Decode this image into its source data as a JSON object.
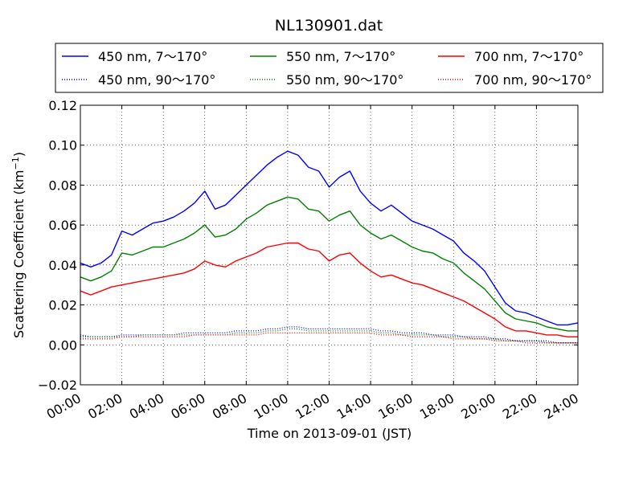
{
  "chart_data": {
    "type": "line",
    "title": "NL130901.dat",
    "xlabel": "Time on 2013-09-01 (JST)",
    "ylabel": "Scattering Coefficient (km",
    "ylabel_sup": "−1",
    "ylabel_end": ")",
    "x_ticks": [
      "00:00",
      "02:00",
      "04:00",
      "06:00",
      "08:00",
      "10:00",
      "12:00",
      "14:00",
      "16:00",
      "18:00",
      "20:00",
      "22:00",
      "24:00"
    ],
    "xlim": [
      "00:00",
      "24:00"
    ],
    "y_ticks": [
      "−0.02",
      "0.00",
      "0.02",
      "0.04",
      "0.06",
      "0.08",
      "0.10",
      "0.12"
    ],
    "ylim": [
      -0.02,
      0.12
    ],
    "grid": true,
    "legend_position": "top",
    "x": [
      "00:00",
      "00:30",
      "01:00",
      "01:30",
      "02:00",
      "02:30",
      "03:00",
      "03:30",
      "04:00",
      "04:30",
      "05:00",
      "05:30",
      "06:00",
      "06:30",
      "07:00",
      "07:30",
      "08:00",
      "08:30",
      "09:00",
      "09:30",
      "10:00",
      "10:30",
      "11:00",
      "11:30",
      "12:00",
      "12:30",
      "13:00",
      "13:30",
      "14:00",
      "14:30",
      "15:00",
      "15:30",
      "16:00",
      "16:30",
      "17:00",
      "17:30",
      "18:00",
      "18:30",
      "19:00",
      "19:30",
      "20:00",
      "20:30",
      "21:00",
      "21:30",
      "22:00",
      "22:30",
      "23:00",
      "23:30",
      "24:00"
    ],
    "series": [
      {
        "name": "450 nm, 7～170°",
        "color": "#0000ff",
        "style": "solid",
        "values": [
          0.041,
          0.039,
          0.041,
          0.045,
          0.057,
          0.055,
          0.058,
          0.061,
          0.062,
          0.064,
          0.067,
          0.071,
          0.077,
          0.068,
          0.07,
          0.075,
          0.08,
          0.085,
          0.09,
          0.094,
          0.097,
          0.095,
          0.089,
          0.087,
          0.079,
          0.084,
          0.087,
          0.077,
          0.071,
          0.067,
          0.07,
          0.066,
          0.062,
          0.06,
          0.058,
          0.055,
          0.052,
          0.046,
          0.042,
          0.037,
          0.029,
          0.021,
          0.017,
          0.016,
          0.014,
          0.012,
          0.01,
          0.01,
          0.011
        ]
      },
      {
        "name": "450 nm, 90～170°",
        "color": "#0000ff",
        "style": "dotted",
        "values": [
          0.005,
          0.004,
          0.004,
          0.004,
          0.005,
          0.005,
          0.005,
          0.005,
          0.005,
          0.005,
          0.006,
          0.006,
          0.006,
          0.006,
          0.006,
          0.007,
          0.007,
          0.007,
          0.008,
          0.008,
          0.009,
          0.009,
          0.008,
          0.008,
          0.008,
          0.008,
          0.008,
          0.008,
          0.008,
          0.007,
          0.007,
          0.006,
          0.006,
          0.006,
          0.005,
          0.005,
          0.005,
          0.004,
          0.004,
          0.004,
          0.003,
          0.003,
          0.002,
          0.002,
          0.002,
          0.002,
          0.001,
          0.001,
          0.001
        ]
      },
      {
        "name": "550 nm, 7～170°",
        "color": "#008000",
        "style": "solid",
        "values": [
          0.034,
          0.032,
          0.034,
          0.037,
          0.046,
          0.045,
          0.047,
          0.049,
          0.049,
          0.051,
          0.053,
          0.056,
          0.06,
          0.054,
          0.055,
          0.058,
          0.063,
          0.066,
          0.07,
          0.072,
          0.074,
          0.073,
          0.068,
          0.067,
          0.062,
          0.065,
          0.067,
          0.06,
          0.056,
          0.053,
          0.055,
          0.052,
          0.049,
          0.047,
          0.046,
          0.043,
          0.041,
          0.036,
          0.032,
          0.028,
          0.022,
          0.016,
          0.013,
          0.012,
          0.011,
          0.009,
          0.008,
          0.007,
          0.007
        ]
      },
      {
        "name": "550 nm, 90～170°",
        "color": "#008000",
        "style": "dotted",
        "values": [
          0.004,
          0.004,
          0.004,
          0.004,
          0.004,
          0.004,
          0.005,
          0.005,
          0.005,
          0.005,
          0.005,
          0.005,
          0.005,
          0.005,
          0.005,
          0.006,
          0.006,
          0.006,
          0.007,
          0.007,
          0.008,
          0.008,
          0.007,
          0.007,
          0.007,
          0.007,
          0.007,
          0.007,
          0.007,
          0.006,
          0.006,
          0.005,
          0.005,
          0.005,
          0.005,
          0.004,
          0.004,
          0.004,
          0.003,
          0.003,
          0.003,
          0.002,
          0.002,
          0.002,
          0.002,
          0.001,
          0.001,
          0.001,
          0.001
        ]
      },
      {
        "name": "700 nm, 7～170°",
        "color": "#ff0000",
        "style": "solid",
        "values": [
          0.027,
          0.025,
          0.027,
          0.029,
          0.03,
          0.031,
          0.032,
          0.033,
          0.034,
          0.035,
          0.036,
          0.038,
          0.042,
          0.04,
          0.039,
          0.042,
          0.044,
          0.046,
          0.049,
          0.05,
          0.051,
          0.051,
          0.048,
          0.047,
          0.042,
          0.045,
          0.046,
          0.041,
          0.037,
          0.034,
          0.035,
          0.033,
          0.031,
          0.03,
          0.028,
          0.026,
          0.024,
          0.022,
          0.019,
          0.016,
          0.013,
          0.009,
          0.007,
          0.007,
          0.006,
          0.005,
          0.005,
          0.004,
          0.004
        ]
      },
      {
        "name": "700 nm, 90～170°",
        "color": "#ff0000",
        "style": "dotted",
        "values": [
          0.003,
          0.003,
          0.003,
          0.003,
          0.004,
          0.004,
          0.004,
          0.004,
          0.004,
          0.004,
          0.004,
          0.005,
          0.005,
          0.005,
          0.005,
          0.005,
          0.005,
          0.005,
          0.006,
          0.006,
          0.006,
          0.006,
          0.006,
          0.006,
          0.006,
          0.006,
          0.006,
          0.006,
          0.006,
          0.005,
          0.005,
          0.005,
          0.004,
          0.004,
          0.004,
          0.004,
          0.003,
          0.003,
          0.003,
          0.003,
          0.002,
          0.002,
          0.002,
          0.001,
          0.001,
          0.001,
          0.001,
          0.001,
          0.001
        ]
      }
    ]
  }
}
